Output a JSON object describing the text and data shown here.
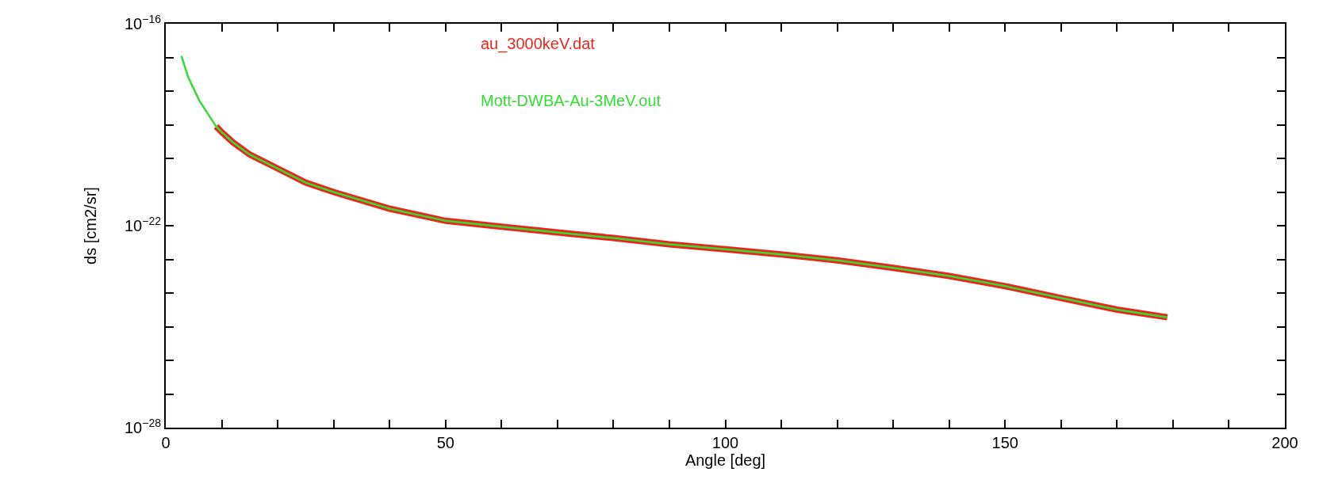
{
  "chart_data": {
    "type": "line",
    "xlabel": "Angle [deg]",
    "ylabel": "ds [cm2/sr]",
    "log": "y",
    "grid": false,
    "legend": "top",
    "marker": "none",
    "line_style": "solid",
    "xlim": [
      0,
      200
    ],
    "xticks": [
      0,
      {
        "value": 10,
        "label": null
      },
      {
        "value": 20,
        "label": null
      },
      {
        "value": 30,
        "label": null
      },
      {
        "value": 40,
        "label": null
      },
      50,
      {
        "value": 60,
        "label": null
      },
      {
        "value": 70,
        "label": null
      },
      {
        "value": 80,
        "label": null
      },
      {
        "value": 90,
        "label": null
      },
      100,
      {
        "value": 110,
        "label": null
      },
      {
        "value": 120,
        "label": null
      },
      {
        "value": 130,
        "label": null
      },
      {
        "value": 140,
        "label": null
      },
      150,
      {
        "value": 160,
        "label": null
      },
      {
        "value": 170,
        "label": null
      },
      {
        "value": 180,
        "label": null
      },
      {
        "value": 190,
        "label": null
      },
      200
    ],
    "ylim": [
      1e-28,
      1e-16
    ],
    "yticks": [
      {
        "value": 1e-28,
        "label": "10$^{−28}$"
      },
      {
        "value": 1e-27,
        "label": null
      },
      {
        "value": 1e-26,
        "label": null
      },
      {
        "value": 1e-25,
        "label": null
      },
      {
        "value": 1e-24,
        "label": null
      },
      {
        "value": 1e-23,
        "label": null
      },
      {
        "value": 1e-22,
        "label": "10$^{−22}$"
      },
      {
        "value": 1e-21,
        "label": null
      },
      {
        "value": 1e-20,
        "label": null
      },
      {
        "value": 1e-19,
        "label": null
      },
      {
        "value": 1e-18,
        "label": null
      },
      {
        "value": 1e-17,
        "label": null
      },
      {
        "value": 1e-16,
        "label": "10$^{−16}$"
      }
    ],
    "series": [
      {
        "name": "au_3000keV.dat",
        "color": "#e8281e",
        "x": [
          9,
          10,
          12,
          15,
          20,
          25,
          30,
          40,
          50,
          60,
          70,
          80,
          90,
          100,
          110,
          120,
          130,
          140,
          150,
          160,
          170,
          179
        ],
        "values": [
          8.9e-20,
          6e-20,
          3e-20,
          1.3e-20,
          5e-21,
          1.9e-21,
          1e-21,
          3.2e-22,
          1.4e-22,
          9.3e-23,
          6.3e-23,
          4.3e-23,
          2.8e-23,
          2e-23,
          1.4e-23,
          9.3e-24,
          5.6e-24,
          3.2e-24,
          1.6e-24,
          7.1e-25,
          3.2e-25,
          1.9e-25
        ]
      },
      {
        "name": "Mott-DWBA-Au-3MeV.out",
        "color": "#33dd33",
        "x": [
          2.8,
          4,
          6,
          8,
          9,
          10,
          12,
          15,
          20,
          25,
          30,
          40,
          50,
          60,
          70,
          80,
          90,
          100,
          110,
          120,
          130,
          140,
          150,
          160,
          170,
          179
        ],
        "values": [
          1.1e-17,
          2.6e-18,
          5.2e-19,
          1.6e-19,
          8.9e-20,
          6e-20,
          3e-20,
          1.3e-20,
          5e-21,
          1.9e-21,
          1e-21,
          3.2e-22,
          1.4e-22,
          9.3e-23,
          6.3e-23,
          4.3e-23,
          2.8e-23,
          2e-23,
          1.4e-23,
          9.3e-24,
          5.6e-24,
          3.2e-24,
          1.6e-24,
          7.1e-25,
          3.2e-25,
          1.9e-25
        ]
      }
    ]
  }
}
